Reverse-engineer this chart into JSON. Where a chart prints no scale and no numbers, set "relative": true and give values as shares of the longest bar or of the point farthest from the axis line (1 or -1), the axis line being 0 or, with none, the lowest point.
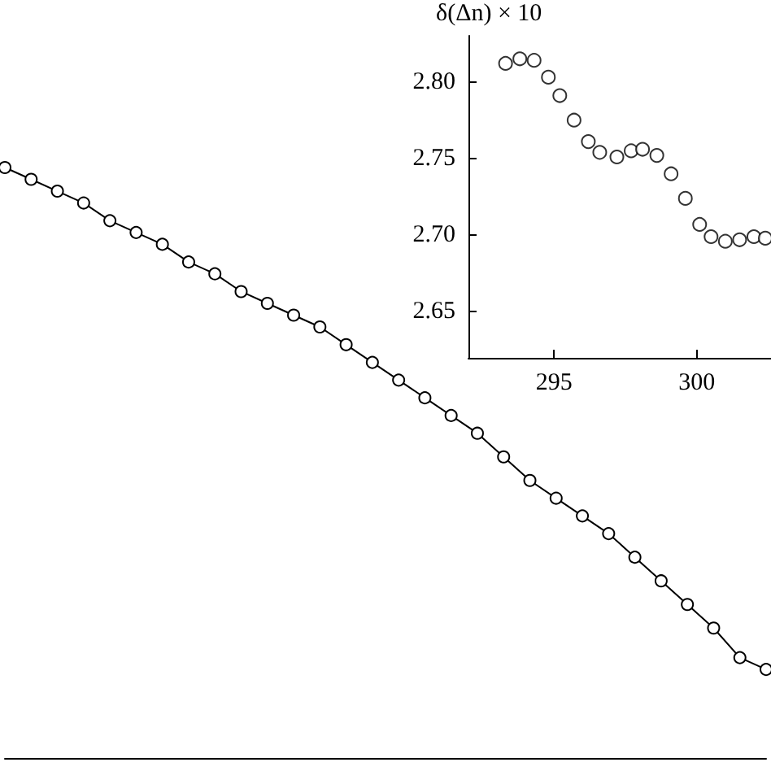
{
  "chart_data": [
    {
      "type": "line",
      "relative": true,
      "marker": "circle",
      "color": "#000000",
      "categories": [
        null,
        null,
        null,
        null,
        null,
        null,
        null,
        null,
        null,
        null,
        null,
        null,
        null,
        null,
        null,
        null,
        null,
        null,
        null,
        null,
        null,
        null,
        null,
        null,
        null,
        null,
        null,
        null,
        null,
        null
      ],
      "values": [
        1.0,
        0.98,
        0.96,
        0.94,
        0.91,
        0.89,
        0.87,
        0.84,
        0.82,
        0.79,
        0.77,
        0.75,
        0.73,
        0.7,
        0.67,
        0.64,
        0.61,
        0.58,
        0.55,
        0.51,
        0.47,
        0.44,
        0.41,
        0.38,
        0.34,
        0.3,
        0.26,
        0.22,
        0.17,
        0.15
      ]
    },
    {
      "type": "scatter",
      "marker": "circle",
      "color": "#000000",
      "ylabel": "δ(Δn) × 10",
      "x": [
        293.3,
        293.8,
        294.3,
        294.8,
        295.2,
        295.7,
        296.2,
        296.6,
        297.2,
        297.7,
        298.1,
        298.6,
        299.1,
        299.6,
        300.1,
        300.5,
        301.0,
        301.5,
        302.0,
        302.4
      ],
      "values": [
        2.812,
        2.815,
        2.814,
        2.803,
        2.791,
        2.775,
        2.761,
        2.754,
        2.751,
        2.755,
        2.756,
        2.752,
        2.74,
        2.724,
        2.707,
        2.699,
        2.696,
        2.697,
        2.699,
        2.698
      ],
      "xlim": [
        292,
        302.6
      ],
      "xticks": [
        295,
        300
      ],
      "ylim": [
        2.62,
        2.83
      ],
      "yticks": [
        2.65,
        {
          "value": 2.7,
          "label": "2.70"
        },
        2.75,
        {
          "value": 2.8,
          "label": "2.80"
        }
      ]
    }
  ]
}
